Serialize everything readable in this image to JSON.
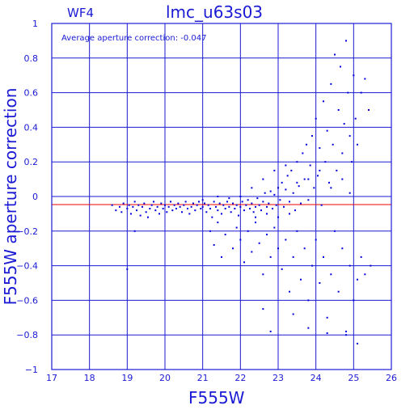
{
  "chart_data": {
    "type": "scatter",
    "panel_label": "WF4",
    "title": "lmc_u63s03",
    "xlabel": "F555W",
    "ylabel": "F555W aperture correction",
    "annotation": "Average aperture correction: -0.047",
    "xlim": [
      17,
      26
    ],
    "ylim": [
      -1,
      1
    ],
    "x_ticks": [
      17,
      18,
      19,
      20,
      21,
      22,
      23,
      24,
      25,
      26
    ],
    "y_ticks": [
      -1,
      -0.8,
      -0.6,
      -0.4,
      -0.2,
      0,
      0.2,
      0.4,
      0.6,
      0.8,
      1
    ],
    "x_tick_labels": [
      "17",
      "18",
      "19",
      "20",
      "21",
      "22",
      "23",
      "24",
      "25",
      "26"
    ],
    "y_tick_labels": [
      "−1",
      "−0.8",
      "−0.6",
      "−0.4",
      "−0.2",
      "0",
      "0.2",
      "0.4",
      "0.6",
      "0.8",
      "1"
    ],
    "grid": true,
    "reference_line": {
      "y": -0.047
    },
    "colors": {
      "axes": "#1a1ad4",
      "points": "#0000dd",
      "reference_line": "#ee0000",
      "background": "#ffffff"
    },
    "series": [
      {
        "points": [
          [
            18.6,
            -0.05
          ],
          [
            18.7,
            -0.08
          ],
          [
            18.8,
            -0.06
          ],
          [
            18.85,
            -0.09
          ],
          [
            18.9,
            -0.04
          ],
          [
            19.0,
            -0.07
          ],
          [
            19.05,
            -0.05
          ],
          [
            19.1,
            -0.1
          ],
          [
            19.15,
            -0.06
          ],
          [
            19.2,
            -0.03
          ],
          [
            19.25,
            -0.08
          ],
          [
            19.3,
            -0.05
          ],
          [
            19.35,
            -0.11
          ],
          [
            19.4,
            -0.06
          ],
          [
            19.45,
            -0.04
          ],
          [
            19.5,
            -0.09
          ],
          [
            19.55,
            -0.12
          ],
          [
            19.6,
            -0.07
          ],
          [
            19.65,
            -0.05
          ],
          [
            19.7,
            -0.03
          ],
          [
            19.75,
            -0.08
          ],
          [
            19.8,
            -0.06
          ],
          [
            19.85,
            -0.1
          ],
          [
            19.9,
            -0.04
          ],
          [
            19.95,
            -0.07
          ],
          [
            20.0,
            -0.05
          ],
          [
            20.05,
            -0.09
          ],
          [
            20.1,
            -0.06
          ],
          [
            20.15,
            -0.03
          ],
          [
            20.2,
            -0.08
          ],
          [
            20.25,
            -0.05
          ],
          [
            20.3,
            -0.07
          ],
          [
            20.35,
            -0.04
          ],
          [
            20.4,
            -0.06
          ],
          [
            20.45,
            -0.09
          ],
          [
            20.5,
            -0.05
          ],
          [
            20.55,
            -0.03
          ],
          [
            20.6,
            -0.07
          ],
          [
            20.65,
            -0.1
          ],
          [
            20.7,
            -0.06
          ],
          [
            20.75,
            -0.04
          ],
          [
            20.8,
            -0.08
          ],
          [
            20.85,
            -0.05
          ],
          [
            20.9,
            -0.03
          ],
          [
            20.95,
            -0.07
          ],
          [
            21.0,
            -0.06
          ],
          [
            21.05,
            -0.04
          ],
          [
            21.1,
            -0.09
          ],
          [
            21.15,
            -0.05
          ],
          [
            21.2,
            -0.07
          ],
          [
            21.25,
            -0.12
          ],
          [
            21.3,
            -0.03
          ],
          [
            21.35,
            -0.06
          ],
          [
            21.4,
            -0.08
          ],
          [
            21.45,
            -0.04
          ],
          [
            21.5,
            -0.1
          ],
          [
            21.55,
            -0.05
          ],
          [
            21.6,
            -0.07
          ],
          [
            21.65,
            -0.03
          ],
          [
            21.7,
            -0.06
          ],
          [
            21.75,
            -0.09
          ],
          [
            21.8,
            -0.04
          ],
          [
            21.85,
            -0.07
          ],
          [
            21.9,
            -0.05
          ],
          [
            21.95,
            -0.11
          ],
          [
            22.0,
            -0.06
          ],
          [
            22.05,
            -0.03
          ],
          [
            22.1,
            -0.08
          ],
          [
            22.15,
            -0.05
          ],
          [
            22.2,
            -0.02
          ],
          [
            22.25,
            -0.07
          ],
          [
            22.3,
            -0.04
          ],
          [
            22.35,
            -0.09
          ],
          [
            22.4,
            -0.06
          ],
          [
            22.45,
            -0.01
          ],
          [
            22.5,
            -0.05
          ],
          [
            22.55,
            -0.08
          ],
          [
            22.6,
            -0.03
          ],
          [
            22.65,
            0.02
          ],
          [
            22.7,
            -0.06
          ],
          [
            22.75,
            -0.04
          ],
          [
            22.8,
            0.03
          ],
          [
            22.85,
            -0.07
          ],
          [
            22.9,
            0.01
          ],
          [
            22.95,
            -0.05
          ],
          [
            23.0,
            0.05
          ],
          [
            23.05,
            -0.02
          ],
          [
            23.1,
            0.08
          ],
          [
            23.15,
            -0.06
          ],
          [
            23.2,
            0.04
          ],
          [
            23.25,
            0.12
          ],
          [
            23.3,
            -0.03
          ],
          [
            23.35,
            0.15
          ],
          [
            23.4,
            0.02
          ],
          [
            23.45,
            -0.08
          ],
          [
            23.5,
            0.2
          ],
          [
            23.55,
            0.06
          ],
          [
            23.6,
            -0.04
          ],
          [
            23.65,
            0.25
          ],
          [
            23.7,
            0.1
          ],
          [
            23.75,
            0.3
          ],
          [
            23.8,
            -0.02
          ],
          [
            23.85,
            0.18
          ],
          [
            23.9,
            0.35
          ],
          [
            23.95,
            0.05
          ],
          [
            24.0,
            0.45
          ],
          [
            24.05,
            0.12
          ],
          [
            24.1,
            0.28
          ],
          [
            24.15,
            -0.05
          ],
          [
            24.2,
            0.55
          ],
          [
            24.25,
            0.2
          ],
          [
            24.3,
            0.38
          ],
          [
            24.35,
            0.08
          ],
          [
            24.4,
            0.65
          ],
          [
            24.45,
            0.3
          ],
          [
            24.5,
            0.82
          ],
          [
            24.55,
            0.15
          ],
          [
            24.6,
            0.5
          ],
          [
            24.65,
            0.75
          ],
          [
            24.7,
            0.25
          ],
          [
            24.75,
            0.42
          ],
          [
            24.8,
            0.9
          ],
          [
            24.85,
            0.6
          ],
          [
            24.9,
            0.35
          ],
          [
            24.95,
            0.2
          ],
          [
            25.0,
            0.7
          ],
          [
            25.05,
            0.45
          ],
          [
            25.1,
            0.3
          ],
          [
            25.2,
            0.6
          ],
          [
            25.3,
            0.68
          ],
          [
            25.4,
            0.5
          ],
          [
            21.2,
            -0.2
          ],
          [
            21.3,
            -0.28
          ],
          [
            21.4,
            -0.15
          ],
          [
            21.5,
            -0.35
          ],
          [
            21.6,
            -0.22
          ],
          [
            21.8,
            -0.3
          ],
          [
            21.9,
            -0.18
          ],
          [
            22.0,
            -0.25
          ],
          [
            22.1,
            -0.38
          ],
          [
            22.2,
            -0.2
          ],
          [
            22.3,
            -0.32
          ],
          [
            22.4,
            -0.15
          ],
          [
            22.5,
            -0.27
          ],
          [
            22.6,
            -0.45
          ],
          [
            22.7,
            -0.22
          ],
          [
            22.8,
            -0.35
          ],
          [
            22.9,
            -0.18
          ],
          [
            23.0,
            -0.3
          ],
          [
            23.1,
            -0.42
          ],
          [
            23.2,
            -0.25
          ],
          [
            23.3,
            -0.55
          ],
          [
            23.4,
            -0.35
          ],
          [
            23.5,
            -0.2
          ],
          [
            23.6,
            -0.48
          ],
          [
            23.7,
            -0.3
          ],
          [
            23.8,
            -0.6
          ],
          [
            23.9,
            -0.4
          ],
          [
            24.0,
            -0.25
          ],
          [
            24.1,
            -0.5
          ],
          [
            24.2,
            -0.35
          ],
          [
            24.3,
            -0.7
          ],
          [
            24.4,
            -0.45
          ],
          [
            24.5,
            -0.2
          ],
          [
            24.6,
            -0.55
          ],
          [
            24.7,
            -0.3
          ],
          [
            24.8,
            -0.78
          ],
          [
            24.9,
            -0.4
          ],
          [
            25.0,
            -0.6
          ],
          [
            25.1,
            -0.48
          ],
          [
            25.2,
            -0.35
          ],
          [
            25.3,
            -0.45
          ],
          [
            25.45,
            -0.4
          ],
          [
            22.6,
            -0.65
          ],
          [
            22.8,
            -0.78
          ],
          [
            23.4,
            -0.68
          ],
          [
            23.8,
            -0.76
          ],
          [
            24.3,
            -0.79
          ],
          [
            24.8,
            -0.8
          ],
          [
            25.1,
            -0.85
          ],
          [
            19.0,
            -0.42
          ],
          [
            19.2,
            -0.2
          ],
          [
            22.3,
            0.05
          ],
          [
            22.6,
            0.1
          ],
          [
            22.9,
            0.15
          ],
          [
            23.2,
            0.18
          ],
          [
            23.5,
            0.08
          ],
          [
            23.8,
            0.1
          ],
          [
            24.1,
            0.15
          ],
          [
            24.4,
            0.05
          ],
          [
            24.7,
            0.1
          ],
          [
            24.9,
            0.02
          ],
          [
            21.0,
            -0.02
          ],
          [
            21.4,
            0.0
          ],
          [
            21.7,
            -0.01
          ],
          [
            22.0,
            0.0
          ],
          [
            22.4,
            -0.12
          ],
          [
            22.7,
            -0.1
          ],
          [
            23.0,
            -0.12
          ],
          [
            23.3,
            -0.1
          ]
        ]
      }
    ]
  }
}
